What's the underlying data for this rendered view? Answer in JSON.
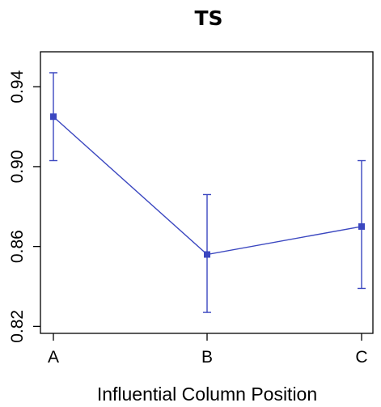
{
  "chart_data": {
    "type": "line",
    "title": "TS",
    "xlabel": "Influential Column Position",
    "ylabel": "",
    "categories": [
      "A",
      "B",
      "C"
    ],
    "series": [
      {
        "values": [
          0.925,
          0.856,
          0.87
        ],
        "error_low": [
          0.903,
          0.827,
          0.839
        ],
        "error_high": [
          0.947,
          0.886,
          0.903
        ]
      }
    ],
    "ylim": [
      0.8165,
      0.9575
    ],
    "yticks": [
      0.82,
      0.86,
      0.9,
      0.94
    ],
    "ytick_labels": [
      "0.82",
      "0.86",
      "0.90",
      "0.94"
    ],
    "grid": false,
    "legend": "none",
    "color": "#3b47c0"
  }
}
